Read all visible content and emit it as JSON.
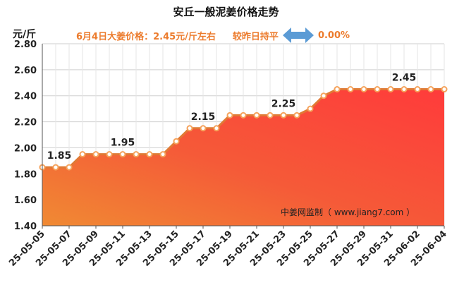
{
  "chart_data": {
    "type": "area",
    "title": "安丘一般泥姜价格走势",
    "subtitle": {
      "price_text": "6月4日大姜价格：2.45元/斤左右",
      "compare_text": "较昨日持平",
      "change_text": "0.00%"
    },
    "ylabel": "元/斤",
    "ylim": [
      1.4,
      2.8
    ],
    "yticks": [
      "1.40",
      "1.60",
      "1.80",
      "2.00",
      "2.20",
      "2.40",
      "2.60",
      "2.80"
    ],
    "grid": true,
    "x": [
      "25-05-05",
      "25-05-06",
      "25-05-07",
      "25-05-08",
      "25-05-09",
      "25-05-10",
      "25-05-11",
      "25-05-12",
      "25-05-13",
      "25-05-14",
      "25-05-15",
      "25-05-16",
      "25-05-17",
      "25-05-18",
      "25-05-19",
      "25-05-20",
      "25-05-21",
      "25-05-22",
      "25-05-23",
      "25-05-24",
      "25-05-25",
      "25-05-26",
      "25-05-27",
      "25-05-28",
      "25-05-29",
      "25-05-30",
      "25-05-31",
      "25-06-01",
      "25-06-02",
      "25-06-03",
      "25-06-04"
    ],
    "xtick_labels": [
      "25-05-05",
      "25-05-07",
      "25-05-09",
      "25-05-11",
      "25-05-13",
      "25-05-15",
      "25-05-17",
      "25-05-19",
      "25-05-21",
      "25-05-23",
      "25-05-25",
      "25-05-27",
      "25-05-29",
      "25-05-31",
      "25-06-02",
      "25-06-04"
    ],
    "series": [
      {
        "values": [
          1.85,
          1.85,
          1.85,
          1.95,
          1.95,
          1.95,
          1.95,
          1.95,
          1.95,
          1.95,
          2.05,
          2.15,
          2.15,
          2.15,
          2.25,
          2.25,
          2.25,
          2.25,
          2.25,
          2.25,
          2.3,
          2.4,
          2.45,
          2.45,
          2.45,
          2.45,
          2.45,
          2.45,
          2.45,
          2.45,
          2.45
        ]
      }
    ],
    "annotations": [
      {
        "x": "25-05-05",
        "label": "1.85"
      },
      {
        "x": "25-05-11",
        "label": "1.95"
      },
      {
        "x": "25-05-17",
        "label": "2.15"
      },
      {
        "x": "25-05-23",
        "label": "2.25"
      },
      {
        "x": "25-06-01",
        "label": "2.45"
      }
    ],
    "watermark": "中姜网监制（ www.jiang7.com ）",
    "colors": {
      "line": "#e07a35",
      "marker": "#f5a25b",
      "fill_top": "#ff3b3b",
      "fill_bottom": "#f08a33",
      "text_accent": "#ec7b2c",
      "arrow": "#5b9bd5"
    }
  }
}
